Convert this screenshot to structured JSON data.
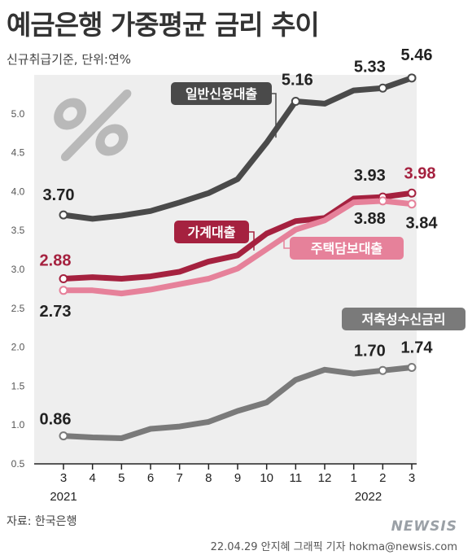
{
  "header": {
    "title": "예금은행 가중평균 금리 추이",
    "subtitle": "신규취급기준, 단위:연%"
  },
  "footer": {
    "source": "자료: 한국은행",
    "credit": "22.04.29 안지혜 그래픽 기자 hokma@newsis.com",
    "watermark": "NEWSIS"
  },
  "colors": {
    "plot_bg": "#eeeeee",
    "general_loan": "#4a4a4a",
    "household_loan": "#a5213f",
    "mortgage": "#e6819a",
    "savings": "#7a7a7a"
  },
  "chart_data": {
    "type": "line",
    "x": [
      "3",
      "4",
      "5",
      "6",
      "7",
      "8",
      "9",
      "10",
      "11",
      "12",
      "1",
      "2",
      "3"
    ],
    "year_labels": [
      {
        "label": "2021",
        "index": 0
      },
      {
        "label": "2022",
        "index": 10.5
      }
    ],
    "ylim": [
      0.5,
      5.5
    ],
    "yticks": [
      "0.5",
      "1.0",
      "1.5",
      "2.0",
      "2.5",
      "3.0",
      "3.5",
      "4.0",
      "4.5",
      "5.0"
    ],
    "series": [
      {
        "name": "일반신용대출",
        "color": "#4a4a4a",
        "values": [
          3.7,
          3.65,
          3.69,
          3.75,
          3.86,
          3.98,
          4.16,
          4.63,
          5.16,
          5.13,
          5.3,
          5.33,
          5.46
        ],
        "labels": [
          {
            "index": 0,
            "text": "3.70",
            "color": "#222222"
          },
          {
            "index": 8,
            "text": "5.16",
            "color": "#222222"
          },
          {
            "index": 11,
            "text": "5.33",
            "color": "#222222"
          },
          {
            "index": 12,
            "text": "5.46",
            "color": "#222222"
          }
        ],
        "markers": [
          0,
          8,
          11,
          12
        ]
      },
      {
        "name": "가계대출",
        "color": "#a5213f",
        "values": [
          2.88,
          2.9,
          2.88,
          2.91,
          2.97,
          3.1,
          3.18,
          3.46,
          3.62,
          3.66,
          3.91,
          3.93,
          3.98
        ],
        "labels": [
          {
            "index": 0,
            "text": "2.88",
            "color": "#a5213f"
          },
          {
            "index": 11,
            "text": "3.93",
            "color": "#222222"
          },
          {
            "index": 12,
            "text": "3.98",
            "color": "#a5213f"
          }
        ],
        "markers": [
          0,
          11,
          12
        ]
      },
      {
        "name": "주택담보대출",
        "color": "#e6819a",
        "values": [
          2.73,
          2.73,
          2.69,
          2.74,
          2.81,
          2.88,
          3.01,
          3.26,
          3.51,
          3.63,
          3.86,
          3.88,
          3.84
        ],
        "labels": [
          {
            "index": 0,
            "text": "2.73",
            "color": "#222222"
          },
          {
            "index": 11,
            "text": "3.88",
            "color": "#222222"
          },
          {
            "index": 12,
            "text": "3.84",
            "color": "#222222"
          }
        ],
        "markers": [
          0,
          11,
          12
        ]
      },
      {
        "name": "저축성수신금리",
        "color": "#7a7a7a",
        "values": [
          0.86,
          0.84,
          0.83,
          0.95,
          0.98,
          1.04,
          1.18,
          1.29,
          1.58,
          1.71,
          1.66,
          1.7,
          1.74
        ],
        "labels": [
          {
            "index": 0,
            "text": "0.86",
            "color": "#222222"
          },
          {
            "index": 11,
            "text": "1.70",
            "color": "#222222"
          },
          {
            "index": 12,
            "text": "1.74",
            "color": "#222222"
          }
        ],
        "markers": [
          0,
          11,
          12
        ]
      }
    ],
    "legend": "inline labels near each line"
  }
}
